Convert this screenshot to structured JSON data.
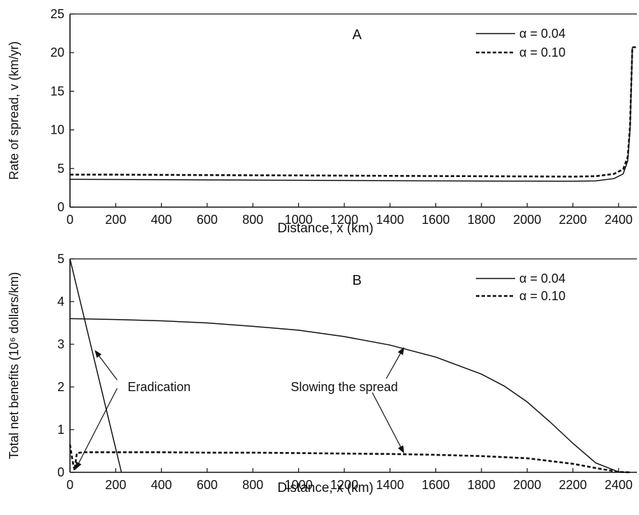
{
  "chart_data": [
    {
      "type": "line",
      "panel_label": "A",
      "xlabel": "Distance, x (km)",
      "ylabel": "Rate of spread, v (km/yr)",
      "xlim": [
        0,
        2480
      ],
      "ylim": [
        0,
        25
      ],
      "xticks": [
        0,
        200,
        400,
        600,
        800,
        1000,
        1200,
        1400,
        1600,
        1800,
        2000,
        2200,
        2400
      ],
      "yticks": [
        0,
        5,
        10,
        15,
        20,
        25
      ],
      "grid": false,
      "legend_position": "top-right",
      "series": [
        {
          "name": "α = 0.04",
          "style": "solid",
          "x": [
            0,
            200,
            400,
            600,
            800,
            1000,
            1200,
            1400,
            1600,
            1800,
            2000,
            2200,
            2300,
            2380,
            2420,
            2440,
            2450,
            2455,
            2460
          ],
          "y": [
            3.6,
            3.58,
            3.55,
            3.52,
            3.5,
            3.48,
            3.45,
            3.42,
            3.4,
            3.38,
            3.36,
            3.35,
            3.4,
            3.7,
            4.3,
            6.0,
            10.0,
            15.0,
            20.7
          ]
        },
        {
          "name": "α = 0.10",
          "style": "dashed",
          "x": [
            0,
            200,
            400,
            600,
            800,
            1000,
            1200,
            1400,
            1600,
            1800,
            2000,
            2200,
            2300,
            2380,
            2420,
            2440,
            2450,
            2455,
            2460,
            2480
          ],
          "y": [
            4.2,
            4.2,
            4.18,
            4.15,
            4.12,
            4.1,
            4.08,
            4.05,
            4.02,
            4.0,
            3.98,
            3.95,
            4.0,
            4.3,
            4.9,
            6.5,
            10.5,
            15.5,
            20.7,
            20.7
          ]
        }
      ]
    },
    {
      "type": "line",
      "panel_label": "B",
      "xlabel": "Distance, x (km)",
      "ylabel": "Total net benefits (10⁶ dollars/km)",
      "xlim": [
        0,
        2480
      ],
      "ylim": [
        0,
        5
      ],
      "xticks": [
        0,
        200,
        400,
        600,
        800,
        1000,
        1200,
        1400,
        1600,
        1800,
        2000,
        2200,
        2400
      ],
      "yticks": [
        0,
        1,
        2,
        3,
        4,
        5
      ],
      "grid": false,
      "legend_position": "top-right",
      "series": [
        {
          "name": "α = 0.04",
          "style": "solid",
          "x": [
            0,
            200,
            400,
            600,
            800,
            1000,
            1200,
            1400,
            1600,
            1800,
            1900,
            2000,
            2100,
            2200,
            2300,
            2400,
            2450
          ],
          "y": [
            3.6,
            3.58,
            3.55,
            3.5,
            3.42,
            3.33,
            3.18,
            2.98,
            2.7,
            2.3,
            2.02,
            1.65,
            1.18,
            0.68,
            0.22,
            0.01,
            0.0
          ]
        },
        {
          "name": "α = 0.10",
          "style": "dashed",
          "x": [
            0,
            10,
            20,
            30,
            60,
            200,
            400,
            600,
            800,
            1000,
            1200,
            1400,
            1600,
            1800,
            2000,
            2200,
            2300,
            2400,
            2450
          ],
          "y": [
            0.65,
            0.3,
            0.05,
            0.45,
            0.47,
            0.47,
            0.47,
            0.46,
            0.46,
            0.45,
            0.44,
            0.43,
            0.41,
            0.38,
            0.33,
            0.2,
            0.1,
            0.01,
            0.0
          ]
        },
        {
          "name": "",
          "style": "solid",
          "x": [
            0,
            225
          ],
          "y": [
            5.0,
            0.0
          ]
        }
      ],
      "annotations": [
        {
          "text": "Eradication",
          "x": 390,
          "y": 2.0
        },
        {
          "text": "Slowing the spread",
          "x": 1200,
          "y": 2.0
        }
      ]
    }
  ]
}
